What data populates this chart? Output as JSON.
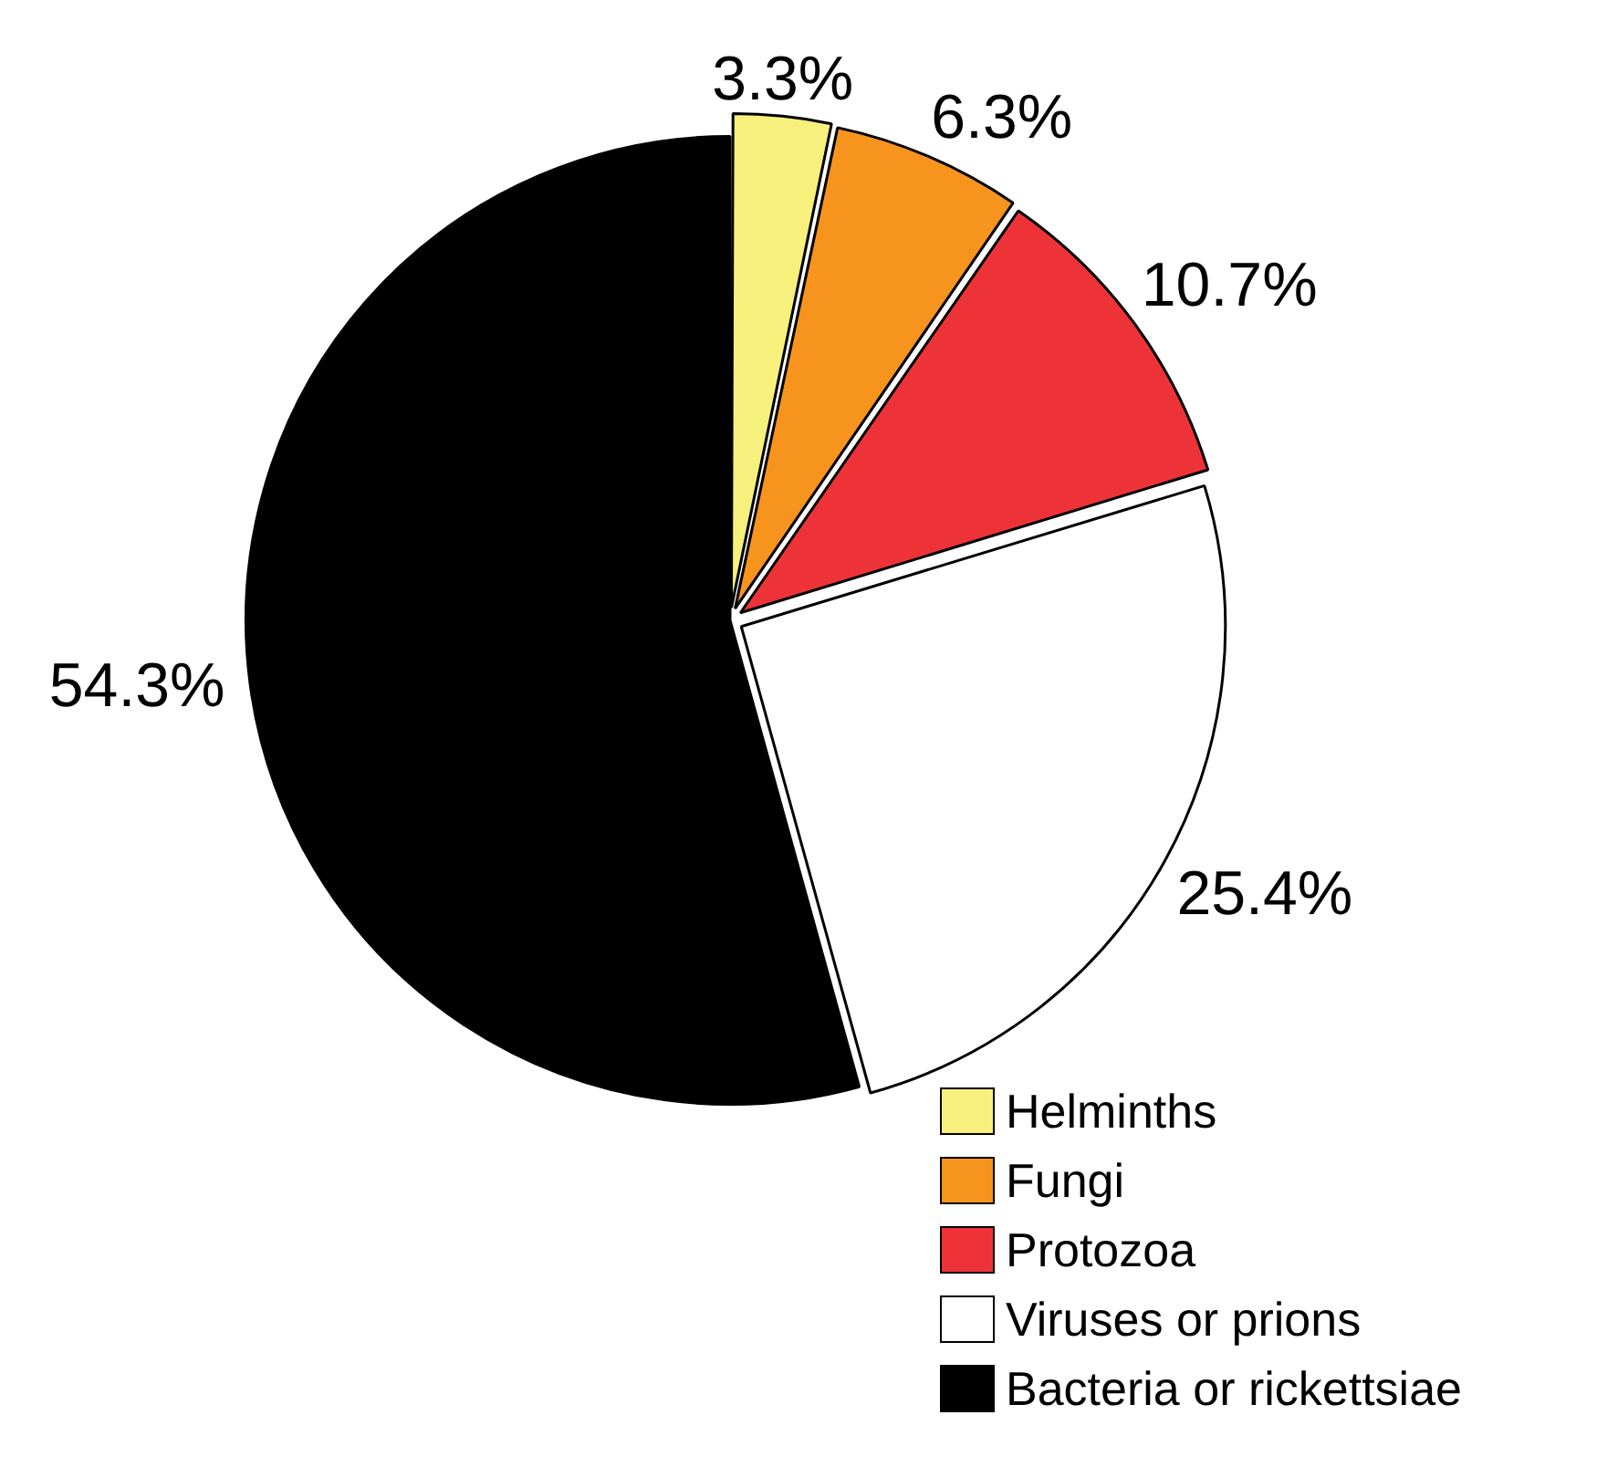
{
  "chart_data": {
    "type": "pie",
    "categories": [
      "Helminths",
      "Fungi",
      "Protozoa",
      "Viruses or prions",
      "Bacteria or rickettsiae"
    ],
    "values": [
      3.3,
      6.3,
      10.7,
      25.4,
      54.3
    ],
    "value_labels": [
      "3.3%",
      "6.3%",
      "10.7%",
      "25.4%",
      "54.3%"
    ],
    "colors": [
      "#f8f07c",
      "#f7941d",
      "#ee3338",
      "#ffffff",
      "#000000"
    ],
    "legend": "bottom right"
  }
}
